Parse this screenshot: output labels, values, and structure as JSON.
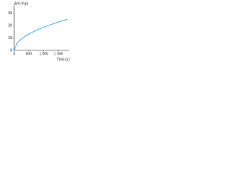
{
  "chart_data": {
    "type": "line",
    "y_label": "Δm (mg)",
    "x_label": "Time (s)",
    "x": [
      0,
      100,
      200,
      400,
      600,
      800,
      1000,
      1200,
      1400,
      1600,
      1800
    ],
    "series": [
      {
        "name": "Δm",
        "color": "#3fa9f5",
        "values": [
          0,
          6,
          8.3,
          11.8,
          14.4,
          16.7,
          18.6,
          20.4,
          22,
          23.6,
          25
        ]
      }
    ],
    "xlim": [
      0,
      1850
    ],
    "xticks": [
      0,
      500,
      {
        "value": 1000,
        "label": "1 000"
      },
      {
        "value": 1500,
        "label": "1 500"
      }
    ],
    "ylim": [
      0,
      36
    ],
    "yticks": [
      0,
      10,
      20,
      30
    ]
  }
}
